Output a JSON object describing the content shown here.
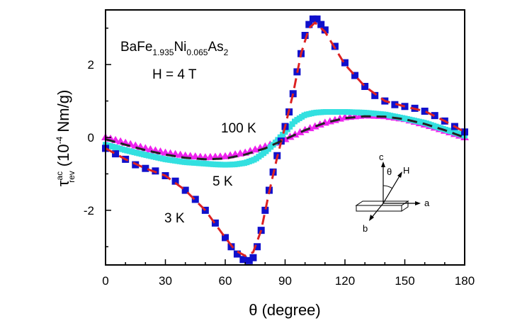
{
  "chart_data": {
    "type": "scatter",
    "title": "",
    "annotations": {
      "compound": {
        "base1": "BaFe",
        "sub1": "1.935",
        "base2": "Ni",
        "sub2": "0.065",
        "base3": "As",
        "sub3": "2"
      },
      "field": "H = 4 T",
      "label_3K": "3 K",
      "label_5K": "5 K",
      "label_100K": "100 K"
    },
    "xlabel": "θ (degree)",
    "ylabel": {
      "symbol": "τ",
      "sup": "ac",
      "sub": "rev",
      "unit_prefix": "(10",
      "unit_exp": "-4",
      "unit_suffix": " Nm/g)"
    },
    "xlim": [
      0,
      180
    ],
    "ylim": [
      -3.5,
      3.5
    ],
    "xticks": [
      "0",
      "30",
      "60",
      "90",
      "120",
      "150",
      "180"
    ],
    "yticks": [
      "-2",
      "0",
      "2"
    ],
    "grid": false,
    "inset": {
      "axis_c": "c",
      "axis_a": "a",
      "axis_b": "b",
      "angle": "θ",
      "field": "H"
    },
    "series": [
      {
        "label": "3 K",
        "color": "#1010cc",
        "marker": "square",
        "x": [
          0,
          5,
          10,
          15,
          20,
          25,
          30,
          35,
          40,
          45,
          50,
          55,
          60,
          63,
          66,
          69,
          72,
          74,
          76,
          78,
          80,
          82,
          84,
          86,
          88,
          90,
          92,
          94,
          96,
          98,
          100,
          102,
          104,
          106,
          108,
          110,
          115,
          120,
          125,
          130,
          135,
          140,
          145,
          150,
          155,
          160,
          165,
          170,
          175,
          180
        ],
        "y": [
          -0.3,
          -0.45,
          -0.6,
          -0.75,
          -0.85,
          -0.92,
          -1.05,
          -1.2,
          -1.45,
          -1.7,
          -2.0,
          -2.35,
          -2.75,
          -3.0,
          -3.2,
          -3.35,
          -3.38,
          -3.3,
          -3.0,
          -2.55,
          -2.0,
          -1.45,
          -0.95,
          -0.5,
          -0.1,
          0.3,
          0.7,
          1.2,
          1.8,
          2.3,
          2.8,
          3.1,
          3.25,
          3.25,
          3.1,
          2.95,
          2.5,
          2.05,
          1.7,
          1.4,
          1.15,
          1.0,
          0.9,
          0.85,
          0.8,
          0.72,
          0.6,
          0.45,
          0.3,
          0.15
        ]
      },
      {
        "label": "5 K",
        "color": "#33e0e0",
        "marker": "square",
        "x": [
          0,
          10,
          20,
          30,
          40,
          50,
          55,
          60,
          65,
          70,
          75,
          80,
          85,
          90,
          95,
          100,
          105,
          110,
          120,
          130,
          140,
          150,
          160,
          170,
          180
        ],
        "y": [
          -0.2,
          -0.35,
          -0.48,
          -0.6,
          -0.68,
          -0.72,
          -0.74,
          -0.75,
          -0.74,
          -0.7,
          -0.6,
          -0.4,
          -0.15,
          0.15,
          0.45,
          0.62,
          0.68,
          0.7,
          0.7,
          0.68,
          0.63,
          0.52,
          0.4,
          0.22,
          0.05
        ]
      },
      {
        "label": "100 K",
        "color": "#ee22ee",
        "marker": "triangle",
        "x": [
          0,
          10,
          20,
          30,
          40,
          50,
          60,
          70,
          80,
          90,
          100,
          110,
          120,
          130,
          140,
          150,
          160,
          170,
          180
        ],
        "y": [
          0.0,
          -0.15,
          -0.3,
          -0.42,
          -0.5,
          -0.55,
          -0.52,
          -0.42,
          -0.25,
          -0.05,
          0.2,
          0.4,
          0.55,
          0.6,
          0.58,
          0.5,
          0.35,
          0.18,
          0.0
        ]
      }
    ],
    "fits": [
      {
        "color": "#dd2222",
        "style": "dashed",
        "x": [
          0,
          10,
          20,
          30,
          40,
          50,
          60,
          65,
          70,
          74,
          78,
          82,
          86,
          90,
          94,
          98,
          102,
          105,
          110,
          120,
          130,
          140,
          150,
          160,
          170,
          180
        ],
        "y": [
          -0.3,
          -0.6,
          -0.85,
          -1.05,
          -1.45,
          -2.0,
          -2.75,
          -3.1,
          -3.25,
          -3.15,
          -2.55,
          -1.5,
          -0.55,
          0.3,
          1.2,
          2.3,
          3.0,
          3.15,
          2.9,
          2.0,
          1.4,
          1.0,
          0.85,
          0.72,
          0.45,
          0.15
        ]
      },
      {
        "color": "#222222",
        "style": "dashed",
        "x": [
          0,
          10,
          20,
          30,
          40,
          50,
          60,
          70,
          80,
          90,
          100,
          110,
          120,
          130,
          140,
          150,
          160,
          170,
          180
        ],
        "y": [
          -0.05,
          -0.2,
          -0.35,
          -0.47,
          -0.56,
          -0.6,
          -0.58,
          -0.47,
          -0.3,
          -0.05,
          0.2,
          0.4,
          0.53,
          0.58,
          0.57,
          0.5,
          0.37,
          0.2,
          0.0
        ]
      }
    ]
  }
}
